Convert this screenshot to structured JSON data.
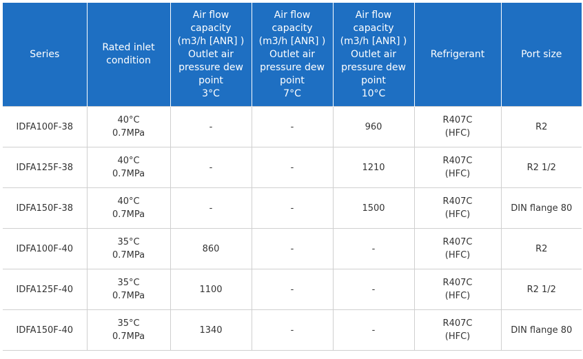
{
  "headers": [
    "Series",
    "Rated inlet\ncondition",
    "Air flow\ncapacity\n(m3/h [ANR] )\nOutlet air\npressure dew\npoint\n3°C",
    "Air flow\ncapacity\n(m3/h [ANR] )\nOutlet air\npressure dew\npoint\n7°C",
    "Air flow\ncapacity\n(m3/h [ANR] )\nOutlet air\npressure dew\npoint\n10°C",
    "Refrigerant",
    "Port size"
  ],
  "rows": [
    [
      "IDFA100F-38",
      "40°C\n0.7MPa",
      "-",
      "-",
      "960",
      "R407C\n(HFC)",
      "R2"
    ],
    [
      "IDFA125F-38",
      "40°C\n0.7MPa",
      "-",
      "-",
      "1210",
      "R407C\n(HFC)",
      "R2 1/2"
    ],
    [
      "IDFA150F-38",
      "40°C\n0.7MPa",
      "-",
      "-",
      "1500",
      "R407C\n(HFC)",
      "DIN flange 80"
    ],
    [
      "IDFA100F-40",
      "35°C\n0.7MPa",
      "860",
      "-",
      "-",
      "R407C\n(HFC)",
      "R2"
    ],
    [
      "IDFA125F-40",
      "35°C\n0.7MPa",
      "1100",
      "-",
      "-",
      "R407C\n(HFC)",
      "R2 1/2"
    ],
    [
      "IDFA150F-40",
      "35°C\n0.7MPa",
      "1340",
      "-",
      "-",
      "R407C\n(HFC)",
      "DIN flange 80"
    ]
  ],
  "colors": {
    "header_bg": "#1e6fc2",
    "header_text": "#ffffff",
    "border": "#cfcfcf",
    "cell_text": "#333333"
  }
}
